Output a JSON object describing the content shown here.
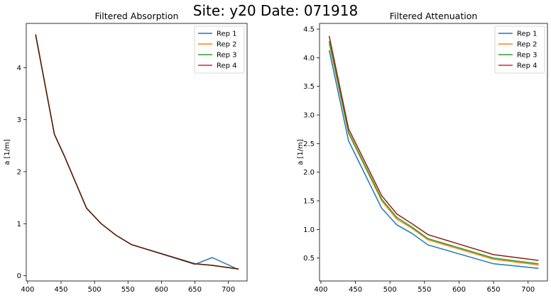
{
  "figure": {
    "suptitle": "Site: y20 Date: 071918"
  },
  "chart_data": [
    {
      "type": "line",
      "title": "Filtered Absorption",
      "xlabel": "",
      "ylabel": "a [1/m]",
      "xlim": [
        398,
        728
      ],
      "ylim": [
        -0.1,
        4.85
      ],
      "xticks": [
        400,
        450,
        500,
        550,
        600,
        650,
        700
      ],
      "yticks": [
        0,
        1,
        2,
        3,
        4
      ],
      "legend": "top-right",
      "grid": false,
      "series": [
        {
          "name": "Rep 1",
          "color": "#1f77b4",
          "x": [
            412,
            440,
            455,
            488,
            510,
            532,
            555,
            650,
            676,
            715
          ],
          "y": [
            4.62,
            2.72,
            2.3,
            1.3,
            1.0,
            0.78,
            0.6,
            0.22,
            0.35,
            0.12
          ]
        },
        {
          "name": "Rep 2",
          "color": "#ff7f0e",
          "x": [
            412,
            440,
            455,
            488,
            510,
            532,
            555,
            650,
            676,
            715
          ],
          "y": [
            4.63,
            2.72,
            2.3,
            1.3,
            1.0,
            0.78,
            0.6,
            0.23,
            0.2,
            0.13
          ]
        },
        {
          "name": "Rep 3",
          "color": "#2ca02c",
          "x": [
            412,
            440,
            455,
            488,
            510,
            532,
            555,
            650,
            676,
            715
          ],
          "y": [
            4.63,
            2.72,
            2.3,
            1.3,
            1.0,
            0.78,
            0.6,
            0.23,
            0.2,
            0.13
          ]
        },
        {
          "name": "Rep 4",
          "color": "#d62728",
          "x": [
            412,
            440,
            455,
            488,
            510,
            532,
            555,
            650,
            676,
            715
          ],
          "y": [
            4.64,
            2.72,
            2.3,
            1.3,
            1.0,
            0.78,
            0.6,
            0.23,
            0.2,
            0.13
          ]
        }
      ],
      "overlap_color": "#2a1a00"
    },
    {
      "type": "line",
      "title": "Filtered Attenuation",
      "xlabel": "",
      "ylabel": "a [1/m]",
      "xlim": [
        398,
        728
      ],
      "ylim": [
        0.1,
        4.6
      ],
      "xticks": [
        400,
        450,
        500,
        550,
        600,
        650,
        700
      ],
      "yticks": [
        0.5,
        1.0,
        1.5,
        2.0,
        2.5,
        3.0,
        3.5,
        4.0,
        4.5
      ],
      "yticklabels": [
        "0.5",
        "1.0",
        "1.5",
        "2.0",
        "2.5",
        "3.0",
        "3.5",
        "4.0",
        "4.5"
      ],
      "legend": "top-right",
      "grid": false,
      "series": [
        {
          "name": "Rep 1",
          "color": "#1f77b4",
          "x": [
            412,
            440,
            488,
            510,
            532,
            555,
            650,
            676,
            715
          ],
          "y": [
            4.13,
            2.55,
            1.37,
            1.08,
            0.93,
            0.73,
            0.4,
            0.37,
            0.32
          ]
        },
        {
          "name": "Rep 2",
          "color": "#ff7f0e",
          "x": [
            412,
            440,
            488,
            510,
            532,
            555,
            650,
            676,
            715
          ],
          "y": [
            4.25,
            2.68,
            1.5,
            1.18,
            1.02,
            0.82,
            0.48,
            0.44,
            0.38
          ]
        },
        {
          "name": "Rep 3",
          "color": "#2ca02c",
          "x": [
            412,
            440,
            488,
            510,
            532,
            555,
            650,
            676,
            715
          ],
          "y": [
            4.29,
            2.7,
            1.53,
            1.21,
            1.04,
            0.84,
            0.5,
            0.46,
            0.4
          ]
        },
        {
          "name": "Rep 4",
          "color": "#d62728",
          "x": [
            412,
            440,
            488,
            510,
            532,
            555,
            650,
            676,
            715
          ],
          "y": [
            4.38,
            2.76,
            1.59,
            1.27,
            1.1,
            0.91,
            0.56,
            0.52,
            0.46
          ]
        }
      ],
      "overlap_color": "#1a2200"
    }
  ]
}
